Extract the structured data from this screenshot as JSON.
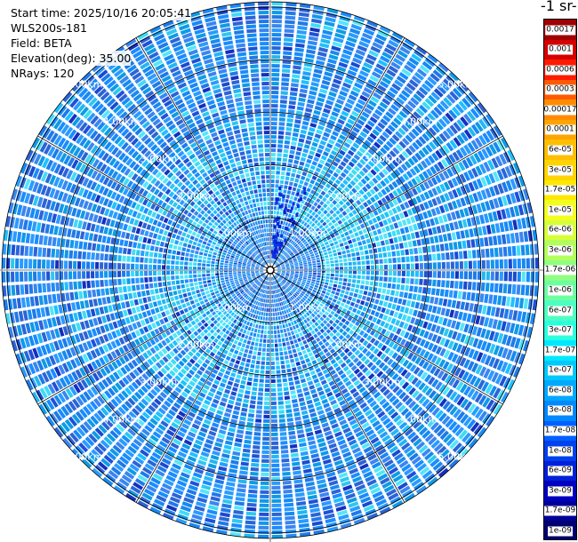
{
  "header": {
    "start_time": "Start time: 2025/10/16 20:05:41",
    "instrument": "WLS200s-181",
    "field": "Field: BETA",
    "elevation": "Elevation(deg): 35.00",
    "nrays": "NRays: 120"
  },
  "chart_data": {
    "type": "polar-ppi",
    "field": "BETA",
    "elevation_deg": 35.0,
    "n_rays": 120,
    "range_rings_km": [
      1.0,
      2.0,
      3.0,
      4.0,
      5.0
    ],
    "range_labels": [
      "1.00km",
      "2.00km",
      "3.00km",
      "4.00km",
      "5.00km"
    ],
    "max_range_km": 5.1,
    "azimuth_lines_deg": [
      0,
      30,
      60,
      90,
      120,
      150,
      180,
      210,
      240,
      270,
      300,
      330
    ],
    "colorbar": {
      "title": "-1 sr-",
      "scale": "log",
      "levels": [
        "0.0017",
        "0.001",
        "0.0006",
        "0.0003",
        "0.00017",
        "0.0001",
        "6e-05",
        "3e-05",
        "1.7e-05",
        "1e-05",
        "6e-06",
        "3e-06",
        "1.7e-06",
        "1e-06",
        "6e-07",
        "3e-07",
        "1.7e-07",
        "1e-07",
        "6e-08",
        "3e-08",
        "1.7e-08",
        "1e-08",
        "6e-09",
        "3e-09",
        "1.7e-09",
        "1e-09"
      ],
      "colors": [
        "#a00000",
        "#d40000",
        "#ff1a00",
        "#ff5a00",
        "#ff8c00",
        "#ffa400",
        "#ffbe00",
        "#ffd400",
        "#ffe800",
        "#f2ff20",
        "#d6ff3a",
        "#b2ff5c",
        "#8eff80",
        "#6cffa0",
        "#4dffc0",
        "#2affde",
        "#00e8ff",
        "#00c8ff",
        "#00a8ff",
        "#0088ff",
        "#0060ff",
        "#0040ee",
        "#0020d8",
        "#0000c0",
        "#000098",
        "#000070"
      ]
    }
  }
}
